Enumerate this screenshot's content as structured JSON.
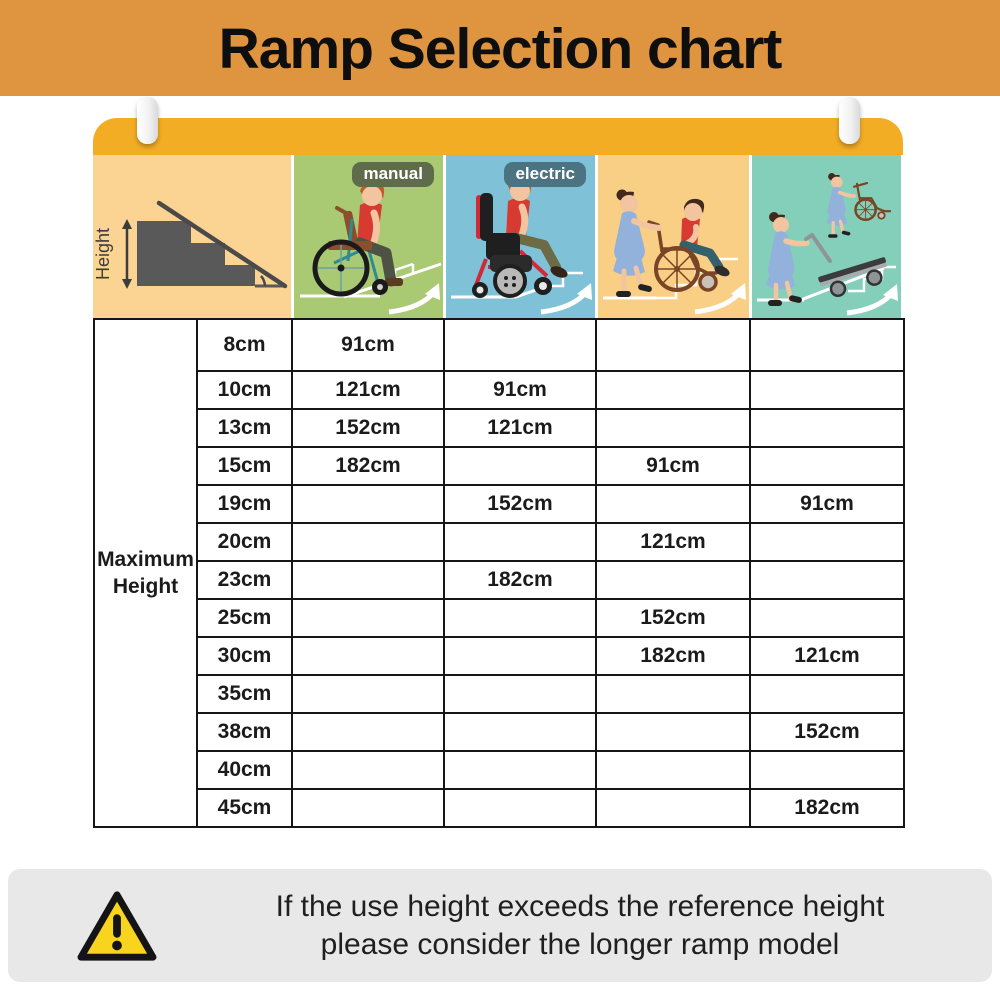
{
  "title": "Ramp Selection chart",
  "board": {
    "height_axis_label": "Height",
    "columns": [
      {
        "id": "manual",
        "badge": "manual",
        "icon": "manual-wheelchair-illustration"
      },
      {
        "id": "electric",
        "badge": "electric",
        "icon": "electric-wheelchair-illustration"
      },
      {
        "id": "attendant",
        "badge": "",
        "icon": "attendant-pushed-wheelchair-illustration"
      },
      {
        "id": "trolley",
        "badge": "",
        "icon": "trolley-and-folded-wheelchair-illustration"
      }
    ]
  },
  "table": {
    "row_label": "Maximum Height",
    "rows": [
      {
        "height": "8cm",
        "manual": "91cm",
        "electric": null,
        "attendant": null,
        "trolley": null
      },
      {
        "height": "10cm",
        "manual": "121cm",
        "electric": "91cm",
        "attendant": null,
        "trolley": null
      },
      {
        "height": "13cm",
        "manual": "152cm",
        "electric": "121cm",
        "attendant": null,
        "trolley": null
      },
      {
        "height": "15cm",
        "manual": "182cm",
        "electric": "",
        "attendant": "91cm",
        "trolley": null
      },
      {
        "height": "19cm",
        "manual": null,
        "electric": "152cm",
        "attendant": "",
        "trolley": "91cm"
      },
      {
        "height": "20cm",
        "manual": null,
        "electric": "",
        "attendant": "121cm",
        "trolley": ""
      },
      {
        "height": "23cm",
        "manual": null,
        "electric": "182cm",
        "attendant": "",
        "trolley": ""
      },
      {
        "height": "25cm",
        "manual": null,
        "electric": null,
        "attendant": "152cm",
        "trolley": ""
      },
      {
        "height": "30cm",
        "manual": null,
        "electric": null,
        "attendant": "182cm",
        "trolley": "121cm"
      },
      {
        "height": "35cm",
        "manual": null,
        "electric": null,
        "attendant": null,
        "trolley": ""
      },
      {
        "height": "38cm",
        "manual": null,
        "electric": null,
        "attendant": null,
        "trolley": "152cm"
      },
      {
        "height": "40cm",
        "manual": null,
        "electric": null,
        "attendant": null,
        "trolley": ""
      },
      {
        "height": "45cm",
        "manual": null,
        "electric": null,
        "attendant": null,
        "trolley": "182cm"
      }
    ]
  },
  "footer": {
    "line1": "If the use height exceeds the reference height",
    "line2": "please consider the longer ramp model"
  },
  "colors": {
    "banner": "#DF9540",
    "board_bar": "#F3AD25",
    "header_height_bg": "#FBD392",
    "manual_header": "#A9C973",
    "electric_header": "#7FC2D7",
    "attendant_header": "#F9CF85",
    "trolley_header": "#83CFB9",
    "manual": "#B2CC7C",
    "electric": "#8CCDDD",
    "attendant": "#FBCF80",
    "trolley": "#7EDABC",
    "badge_manual": "#5E6C4B",
    "badge_electric": "#4C7381",
    "table_border": "#161616",
    "footer_bg": "#E8E8E8",
    "warning_yellow": "#F8D41F"
  },
  "chart_data": {
    "type": "table",
    "title": "Ramp Selection chart",
    "row_header": "Maximum Height",
    "columns": [
      "manual wheelchair",
      "electric wheelchair",
      "attendant-pushed wheelchair",
      "trolley"
    ],
    "heights_cm": [
      8,
      10,
      13,
      15,
      19,
      20,
      23,
      25,
      30,
      35,
      38,
      40,
      45
    ],
    "series": [
      {
        "name": "manual",
        "ramp_length_cm_by_height": {
          "8": 91,
          "10": 121,
          "13": 152,
          "15": 182
        }
      },
      {
        "name": "electric",
        "ramp_length_cm_by_height": {
          "10": 91,
          "13": 121,
          "19": 152,
          "23": 182
        }
      },
      {
        "name": "attendant",
        "ramp_length_cm_by_height": {
          "15": 91,
          "20": 121,
          "25": 152,
          "30": 182
        }
      },
      {
        "name": "trolley",
        "ramp_length_cm_by_height": {
          "19": 91,
          "30": 121,
          "38": 152,
          "45": 182
        }
      }
    ],
    "note": "If the use height exceeds the reference height please consider the longer ramp model"
  }
}
